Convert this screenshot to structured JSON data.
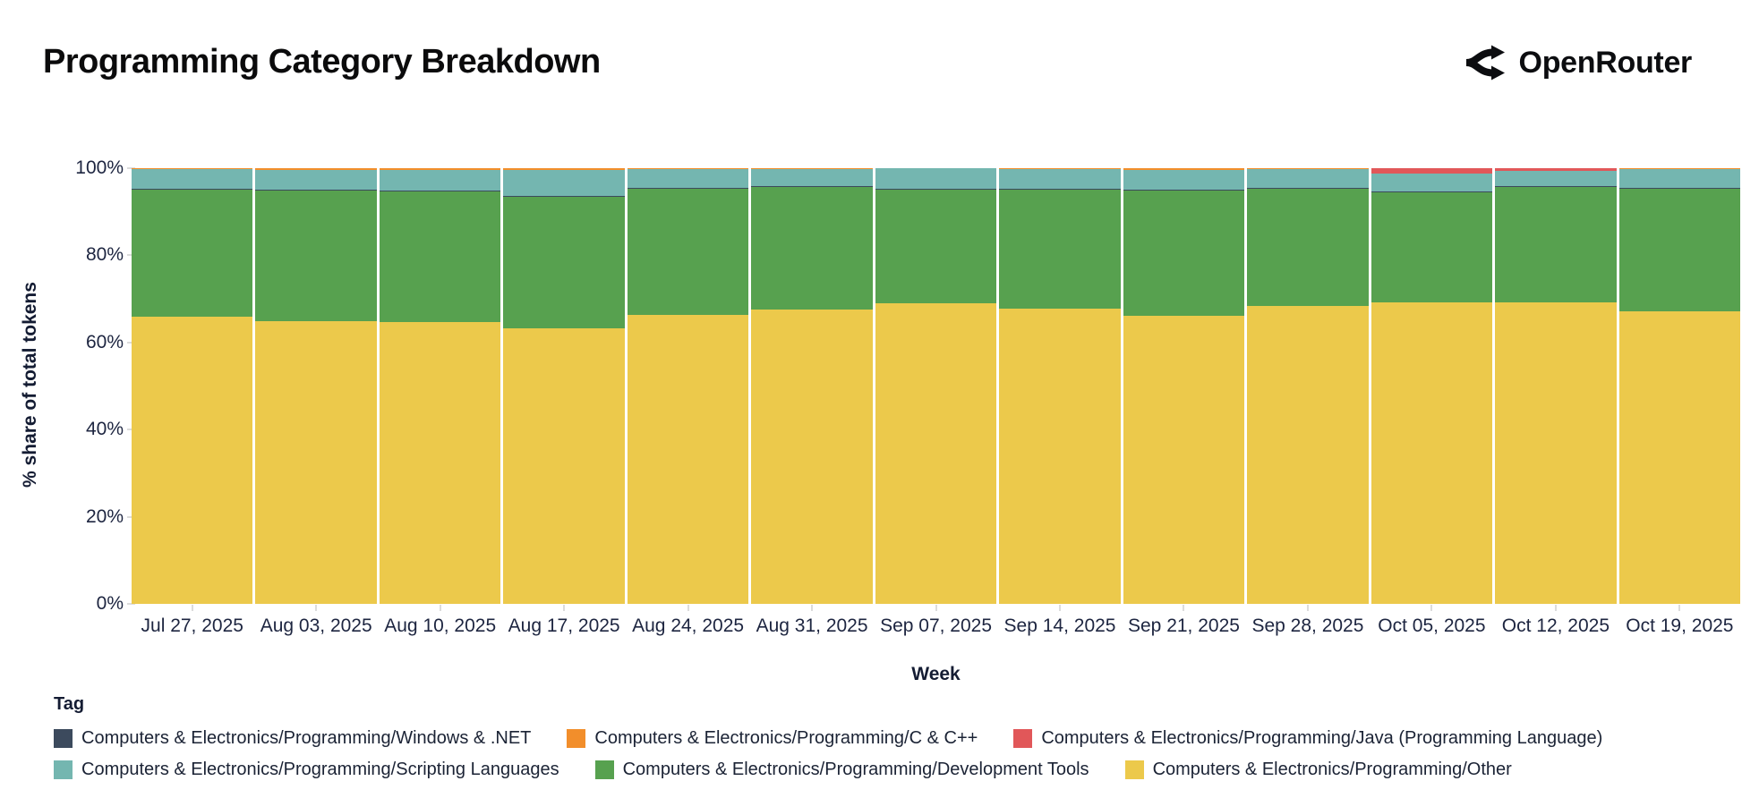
{
  "header": {
    "title": "Programming Category Breakdown",
    "brand": "OpenRouter"
  },
  "chart_data": {
    "type": "bar",
    "stacked": true,
    "title": "Programming Category Breakdown",
    "xlabel": "Week",
    "ylabel": "% share of total tokens",
    "ylim": [
      0,
      100
    ],
    "grid": false,
    "legend_title": "Tag",
    "legend_position": "bottom",
    "yticks": [
      {
        "value": 0,
        "label": "0%"
      },
      {
        "value": 20,
        "label": "20%"
      },
      {
        "value": 40,
        "label": "40%"
      },
      {
        "value": 60,
        "label": "60%"
      },
      {
        "value": 80,
        "label": "80%"
      },
      {
        "value": 100,
        "label": "100%"
      }
    ],
    "categories": [
      "Jul 27, 2025",
      "Aug 03, 2025",
      "Aug 10, 2025",
      "Aug 17, 2025",
      "Aug 24, 2025",
      "Aug 31, 2025",
      "Sep 07, 2025",
      "Sep 14, 2025",
      "Sep 21, 2025",
      "Sep 28, 2025",
      "Oct 05, 2025",
      "Oct 12, 2025",
      "Oct 19, 2025"
    ],
    "series": [
      {
        "name": "Computers & Electronics/Programming/Other",
        "color": "#ecc94b",
        "pattern": "solid",
        "values": [
          66.0,
          64.9,
          64.6,
          63.2,
          66.3,
          67.6,
          68.9,
          67.8,
          66.1,
          68.3,
          69.1,
          69.1,
          67.2
        ]
      },
      {
        "name": "Computers & Electronics/Programming/Development Tools",
        "color": "#57a14f",
        "pattern": "solid",
        "values": [
          29.0,
          30.0,
          30.1,
          30.4,
          29.1,
          28.1,
          26.2,
          27.4,
          28.9,
          27.0,
          25.5,
          26.7,
          28.0
        ]
      },
      {
        "name": "Computers & Electronics/Programming/Windows & .NET",
        "color": "#3c4a5d",
        "pattern": "dots",
        "values": [
          0.2,
          0.2,
          0.2,
          0.1,
          0.1,
          0.1,
          0.1,
          0.1,
          0.1,
          0.2,
          0.1,
          0.1,
          0.2
        ]
      },
      {
        "name": "Computers & Electronics/Programming/Scripting Languages",
        "color": "#74b6b0",
        "pattern": "solid",
        "values": [
          4.5,
          4.5,
          4.7,
          5.9,
          4.2,
          4.0,
          4.8,
          4.4,
          4.5,
          4.2,
          4.1,
          3.4,
          4.3
        ]
      },
      {
        "name": "Computers & Electronics/Programming/Java (Programming Language)",
        "color": "#e15759",
        "pattern": "solid",
        "values": [
          0,
          0,
          0,
          0,
          0,
          0,
          0,
          0,
          0,
          0,
          1.2,
          0.7,
          0
        ]
      },
      {
        "name": "Computers & Electronics/Programming/C & C++",
        "color": "#f28e2b",
        "pattern": "solid",
        "values": [
          0.3,
          0.4,
          0.4,
          0.4,
          0.3,
          0.2,
          0,
          0.3,
          0.4,
          0.3,
          0,
          0,
          0.3
        ]
      }
    ],
    "legend_rows": [
      [
        "Computers & Electronics/Programming/Windows & .NET",
        "Computers & Electronics/Programming/C & C++",
        "Computers & Electronics/Programming/Java (Programming Language)"
      ],
      [
        "Computers & Electronics/Programming/Scripting Languages",
        "Computers & Electronics/Programming/Development Tools",
        "Computers & Electronics/Programming/Other"
      ]
    ]
  }
}
